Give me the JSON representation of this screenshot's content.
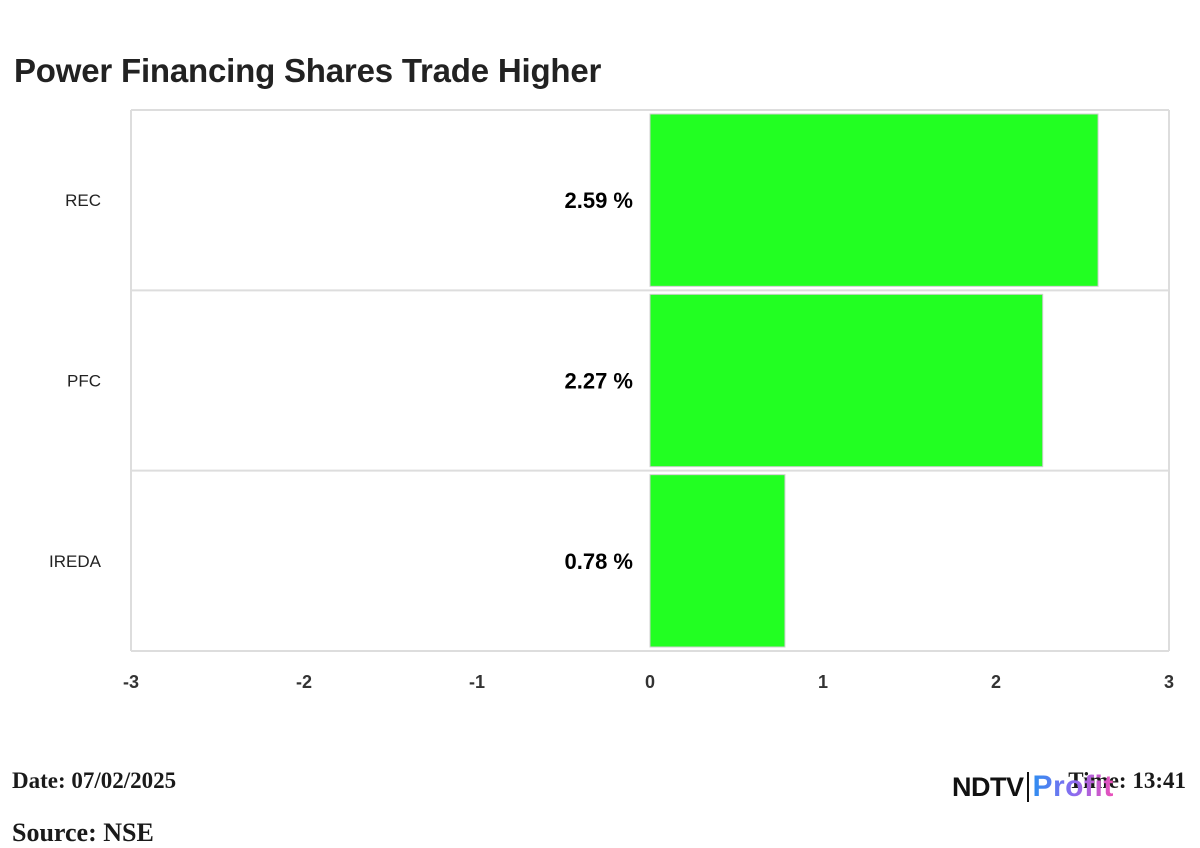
{
  "title": "Power Financing Shares Trade Higher",
  "footer": {
    "date": "Date: 07/02/2025",
    "time": "Time: 13:41",
    "source": "Source: NSE"
  },
  "logo": {
    "brand": "NDTV",
    "product": "Profit"
  },
  "colors": {
    "bar": "#22ff22",
    "grid": "#dddddd",
    "text": "#222222"
  },
  "chart_data": {
    "type": "bar",
    "orientation": "horizontal",
    "categories": [
      "REC",
      "PFC",
      "IREDA"
    ],
    "values": [
      2.59,
      2.27,
      0.78
    ],
    "data_labels": [
      "2.59 %",
      "2.27 %",
      "0.78 %"
    ],
    "xlim": [
      -3,
      3
    ],
    "xticks": [
      "-3",
      "-2",
      "-1",
      "0",
      "1",
      "2",
      "3"
    ],
    "grid": true
  }
}
